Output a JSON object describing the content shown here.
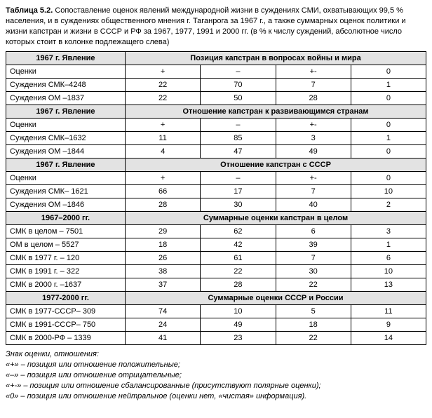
{
  "title_label": "Таблица 5.2.",
  "title_text": "Сопоставление оценок явлений международной жизни в суждениях СМИ, охватывающих 99,5 % населения, и в суждениях общественного мнения г. Таганрога за 1967 г., а также суммарных оценок политики и жизни капстран и жизни в СССР и РФ за 1967, 1977, 1991 и 2000 гг. (в % к числу суждений, абсолютное число которых стоит в колонке подлежащего слева)",
  "col_headers": {
    "plus": "+",
    "minus": "–",
    "pm": "+-",
    "zero": "0"
  },
  "sections": [
    {
      "left": "1967 г. Явление",
      "right": "Позиция капстран в вопросах войны и мира",
      "label_row": "Оценки",
      "rows": [
        {
          "name": "Суждения СМК–4248",
          "v": [
            "22",
            "70",
            "7",
            "1"
          ]
        },
        {
          "name": "Суждения ОМ –1837",
          "v": [
            "22",
            "50",
            "28",
            "0"
          ]
        }
      ]
    },
    {
      "left": "1967 г. Явление",
      "right": "Отношение капстран к развивающимся странам",
      "label_row": "Оценки",
      "rows": [
        {
          "name": "Суждения СМК–1632",
          "v": [
            "11",
            "85",
            "3",
            "1"
          ]
        },
        {
          "name": "Суждения ОМ –1844",
          "v": [
            "4",
            "47",
            "49",
            "0"
          ]
        }
      ]
    },
    {
      "left": "1967 г. Явление",
      "right": "Отношение капстран с СССР",
      "label_row": "Оценки",
      "rows": [
        {
          "name": "Суждения СМК– 1621",
          "v": [
            "66",
            "17",
            "7",
            "10"
          ]
        },
        {
          "name": "Суждения ОМ –1846",
          "v": [
            "28",
            "30",
            "40",
            "2"
          ]
        }
      ]
    },
    {
      "left": "1967–2000 гг.",
      "right": "Суммарные оценки капстран в целом",
      "label_row": null,
      "rows": [
        {
          "name": "СМК в целом – 7501",
          "v": [
            "29",
            "62",
            "6",
            "3"
          ]
        },
        {
          "name": "ОМ в целом – 5527",
          "v": [
            "18",
            "42",
            "39",
            "1"
          ]
        },
        {
          "name": "СМК в 1977 г. – 120",
          "v": [
            "26",
            "61",
            "7",
            "6"
          ]
        },
        {
          "name": "СМК в 1991 г. – 322",
          "v": [
            "38",
            "22",
            "30",
            "10"
          ]
        },
        {
          "name": "СМК в 2000 г. –1637",
          "v": [
            "37",
            "28",
            "22",
            "13"
          ]
        }
      ]
    },
    {
      "left": "1977-2000 гг.",
      "right": "Суммарные оценки СССР и России",
      "label_row": null,
      "rows": [
        {
          "name": "СМК в 1977-СССР– 309",
          "v": [
            "74",
            "10",
            "5",
            "11"
          ]
        },
        {
          "name": "СМК в 1991-СССР– 750",
          "v": [
            "24",
            "49",
            "18",
            "9"
          ]
        },
        {
          "name": "СМК в 2000-РФ – 1339",
          "v": [
            "41",
            "23",
            "22",
            "14"
          ]
        }
      ]
    }
  ],
  "legend": {
    "header": "Знак оценки, отношения:",
    "items": [
      "«+» – позиция или отношение положительные;",
      "«–» – позиция или отношение отрицательные;",
      "«+-» – позиция или отношение сбалансированные (присутствуют полярные оценки);",
      "«0» – позиция или отношение нейтральное (оценки нет, «чистая» информация)."
    ]
  }
}
